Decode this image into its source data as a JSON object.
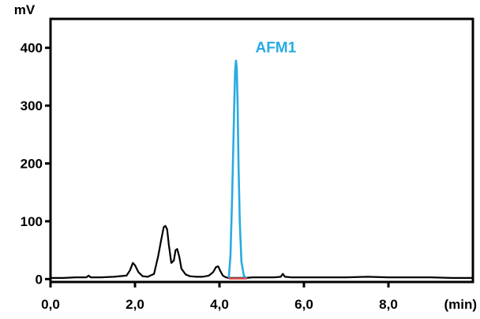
{
  "chart_data": {
    "type": "line",
    "title": "",
    "xlabel": "",
    "ylabel": "",
    "y_unit": "mV",
    "x_unit": "(min)",
    "xlim": [
      0,
      10
    ],
    "ylim": [
      -5,
      450
    ],
    "x_ticks": [
      {
        "value": 0,
        "label": "0,0"
      },
      {
        "value": 2,
        "label": "2,0"
      },
      {
        "value": 4,
        "label": "4,0"
      },
      {
        "value": 6,
        "label": "6,0"
      },
      {
        "value": 8,
        "label": "8,0"
      }
    ],
    "y_ticks": [
      {
        "value": 0,
        "label": "0"
      },
      {
        "value": 100,
        "label": "100"
      },
      {
        "value": 200,
        "label": "200"
      },
      {
        "value": 300,
        "label": "300"
      },
      {
        "value": 400,
        "label": "400"
      }
    ],
    "grid": false,
    "legend": "none",
    "series": [
      {
        "color": "#000000",
        "x": [
          0.0,
          0.3,
          0.6,
          0.85,
          0.9,
          0.95,
          1.2,
          1.5,
          1.8,
          1.88,
          1.95,
          2.0,
          2.08,
          2.18,
          2.3,
          2.45,
          2.55,
          2.62,
          2.68,
          2.72,
          2.76,
          2.8,
          2.86,
          2.92,
          2.96,
          3.0,
          3.05,
          3.1,
          3.2,
          3.3,
          3.45,
          3.6,
          3.75,
          3.85,
          3.92,
          3.97,
          4.02,
          4.08,
          4.15,
          4.22,
          4.6,
          4.8,
          5.0,
          5.3,
          5.45,
          5.5,
          5.55,
          5.7,
          6.0,
          6.5,
          7.0,
          7.5,
          8.0,
          8.5,
          9.0,
          9.5,
          10.0
        ],
        "y": [
          2,
          2,
          3,
          3,
          6,
          3,
          3,
          4,
          6,
          15,
          28,
          24,
          12,
          5,
          4,
          9,
          40,
          68,
          90,
          92,
          86,
          60,
          28,
          32,
          50,
          52,
          38,
          18,
          8,
          5,
          4,
          4,
          6,
          12,
          21,
          22,
          14,
          6,
          3,
          2,
          2,
          3,
          3,
          3,
          4,
          9,
          4,
          3,
          3,
          3,
          3,
          4,
          3,
          3,
          3,
          2,
          2
        ]
      },
      {
        "name": "AFM1",
        "color": "#29abe2",
        "x": [
          4.22,
          4.26,
          4.3,
          4.33,
          4.35,
          4.37,
          4.39,
          4.41,
          4.43,
          4.45,
          4.48,
          4.52,
          4.58,
          4.65
        ],
        "y": [
          2,
          40,
          140,
          240,
          300,
          360,
          378,
          365,
          300,
          200,
          100,
          30,
          5,
          2
        ]
      }
    ],
    "baseline": {
      "color": "#e05050",
      "x": [
        4.22,
        4.65
      ],
      "y": [
        1,
        1
      ]
    },
    "annotations": [
      {
        "text": "AFM1",
        "x": 4.85,
        "y": 392,
        "color": "#29abe2"
      }
    ]
  }
}
